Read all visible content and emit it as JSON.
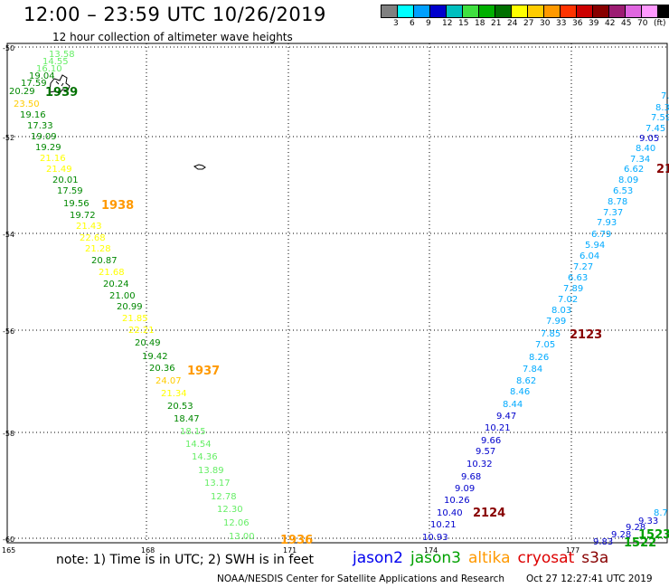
{
  "title": "12:00 – 23:59 UTC 10/26/2019",
  "subtitle": "12 hour collection of altimeter wave heights",
  "legend": {
    "colors": [
      "#808080",
      "#00ffff",
      "#00a0ff",
      "#0000cd",
      "#00bfbf",
      "#40e040",
      "#00b000",
      "#007000",
      "#ffff00",
      "#ffcc00",
      "#ff9900",
      "#ff3300",
      "#cc0000",
      "#880000",
      "#9c1c72",
      "#e066e0",
      "#ff99ff",
      "#000000"
    ],
    "labels": [
      "3",
      "6",
      "9",
      "12",
      "15",
      "18",
      "21",
      "24",
      "27",
      "30",
      "33",
      "36",
      "39",
      "42",
      "45",
      "70",
      "(ft)"
    ]
  },
  "axes": {
    "lat_labels": [
      "-50",
      "-52",
      "-54",
      "-56",
      "-58",
      "-60"
    ],
    "lon_labels": [
      "165",
      "168",
      "171",
      "174",
      "177"
    ]
  },
  "passes": [
    {
      "id": "1939",
      "label": "1939",
      "color": "#007000"
    },
    {
      "id": "1938",
      "label": "1938",
      "color": "#ff9900"
    },
    {
      "id": "1937",
      "label": "1937",
      "color": "#ff9900"
    },
    {
      "id": "1936",
      "label": "1936",
      "color": "#ff9900"
    },
    {
      "id": "2123",
      "label": "2123",
      "color": "#880000"
    },
    {
      "id": "2124",
      "label": "2124",
      "color": "#880000"
    },
    {
      "id": "21",
      "label": "21",
      "color": "#880000"
    },
    {
      "id": "1523",
      "label": "1523",
      "color": "#00a000"
    },
    {
      "id": "1522",
      "label": "1522",
      "color": "#00a000"
    }
  ],
  "wave_labels": {
    "west_track": [
      {
        "v": "13.58",
        "c": "#66ee66"
      },
      {
        "v": "14.55",
        "c": "#66ee66"
      },
      {
        "v": "16.10",
        "c": "#66ee66"
      },
      {
        "v": "19.04",
        "c": "#008800"
      },
      {
        "v": "17.59",
        "c": "#008800"
      },
      {
        "v": "20.29",
        "c": "#008800"
      },
      {
        "v": "23.50",
        "c": "#ffcc00"
      },
      {
        "v": "19.16",
        "c": "#008800"
      },
      {
        "v": "17.33",
        "c": "#008800"
      },
      {
        "v": "19.09",
        "c": "#008800"
      },
      {
        "v": "19.29",
        "c": "#008800"
      },
      {
        "v": "21.16",
        "c": "#ffff00"
      },
      {
        "v": "21.49",
        "c": "#ffff00"
      },
      {
        "v": "20.01",
        "c": "#008800"
      },
      {
        "v": "17.59",
        "c": "#008800"
      },
      {
        "v": "19.56",
        "c": "#008800"
      },
      {
        "v": "19.72",
        "c": "#008800"
      },
      {
        "v": "21.43",
        "c": "#ffff00"
      },
      {
        "v": "22.68",
        "c": "#ffff00"
      },
      {
        "v": "21.28",
        "c": "#ffff00"
      },
      {
        "v": "20.87",
        "c": "#008800"
      },
      {
        "v": "21.68",
        "c": "#ffff00"
      },
      {
        "v": "20.24",
        "c": "#008800"
      },
      {
        "v": "21.00",
        "c": "#008800"
      },
      {
        "v": "20.99",
        "c": "#008800"
      },
      {
        "v": "21.85",
        "c": "#ffff00"
      },
      {
        "v": "22.21",
        "c": "#ffff00"
      },
      {
        "v": "20.49",
        "c": "#008800"
      },
      {
        "v": "19.42",
        "c": "#008800"
      },
      {
        "v": "20.36",
        "c": "#008800"
      },
      {
        "v": "24.07",
        "c": "#ffcc00"
      },
      {
        "v": "21.34",
        "c": "#ffff00"
      },
      {
        "v": "20.53",
        "c": "#008800"
      },
      {
        "v": "18.47",
        "c": "#008800"
      },
      {
        "v": "18.15",
        "c": "#66ee66"
      },
      {
        "v": "14.54",
        "c": "#66ee66"
      },
      {
        "v": "14.36",
        "c": "#66ee66"
      },
      {
        "v": "13.89",
        "c": "#66ee66"
      },
      {
        "v": "13.17",
        "c": "#66ee66"
      },
      {
        "v": "12.78",
        "c": "#66ee66"
      },
      {
        "v": "12.30",
        "c": "#66ee66"
      },
      {
        "v": "12.06",
        "c": "#66ee66"
      },
      {
        "v": "13.00",
        "c": "#66ee66"
      }
    ],
    "east_track": [
      {
        "v": "7.",
        "c": "#00aaff"
      },
      {
        "v": "8.3",
        "c": "#00aaff"
      },
      {
        "v": "7.59",
        "c": "#00aaff"
      },
      {
        "v": "7.45",
        "c": "#00aaff"
      },
      {
        "v": "9.05",
        "c": "#0000cc"
      },
      {
        "v": "8.40",
        "c": "#00aaff"
      },
      {
        "v": "7.34",
        "c": "#00aaff"
      },
      {
        "v": "6.62",
        "c": "#00aaff"
      },
      {
        "v": "8.09",
        "c": "#00aaff"
      },
      {
        "v": "6.53",
        "c": "#00aaff"
      },
      {
        "v": "8.78",
        "c": "#00aaff"
      },
      {
        "v": "7.37",
        "c": "#00aaff"
      },
      {
        "v": "7.93",
        "c": "#00aaff"
      },
      {
        "v": "6.79",
        "c": "#00aaff"
      },
      {
        "v": "5.94",
        "c": "#00aaff"
      },
      {
        "v": "6.04",
        "c": "#00aaff"
      },
      {
        "v": "7.27",
        "c": "#00aaff"
      },
      {
        "v": "6.63",
        "c": "#00aaff"
      },
      {
        "v": "7.89",
        "c": "#00aaff"
      },
      {
        "v": "7.02",
        "c": "#00aaff"
      },
      {
        "v": "8.03",
        "c": "#00aaff"
      },
      {
        "v": "7.99",
        "c": "#00aaff"
      },
      {
        "v": "7.85",
        "c": "#00aaff"
      },
      {
        "v": "7.05",
        "c": "#00aaff"
      },
      {
        "v": "8.26",
        "c": "#00aaff"
      },
      {
        "v": "7.84",
        "c": "#00aaff"
      },
      {
        "v": "8.62",
        "c": "#00aaff"
      },
      {
        "v": "8.46",
        "c": "#00aaff"
      },
      {
        "v": "8.44",
        "c": "#00aaff"
      },
      {
        "v": "9.47",
        "c": "#0000cc"
      },
      {
        "v": "10.21",
        "c": "#0000cc"
      },
      {
        "v": "9.66",
        "c": "#0000cc"
      },
      {
        "v": "9.57",
        "c": "#0000cc"
      },
      {
        "v": "10.32",
        "c": "#0000cc"
      },
      {
        "v": "9.68",
        "c": "#0000cc"
      },
      {
        "v": "9.09",
        "c": "#0000cc"
      },
      {
        "v": "10.26",
        "c": "#0000cc"
      },
      {
        "v": "10.40",
        "c": "#0000cc"
      },
      {
        "v": "10.21",
        "c": "#0000cc"
      },
      {
        "v": "10.93",
        "c": "#0000cc"
      }
    ],
    "se_track": [
      {
        "v": "8.7",
        "c": "#00aaff"
      },
      {
        "v": "9.33",
        "c": "#0000cc"
      },
      {
        "v": "9.28",
        "c": "#0000cc"
      },
      {
        "v": "9.28",
        "c": "#0000cc"
      },
      {
        "v": "9.83",
        "c": "#0000cc"
      }
    ]
  },
  "note": "note: 1) Time is in UTC; 2) SWH is in feet",
  "satellites": [
    {
      "name": "jason2",
      "color": "#0000ee"
    },
    {
      "name": "jason3",
      "color": "#00a000"
    },
    {
      "name": "altika",
      "color": "#ff9900"
    },
    {
      "name": "cryosat",
      "color": "#dd0000"
    },
    {
      "name": "s3a",
      "color": "#880000"
    }
  ],
  "credit": "NOAA/NESDIS Center for Satellite Applications and Research",
  "timestamp": "Oct 27 12:27:41 UTC 2019"
}
